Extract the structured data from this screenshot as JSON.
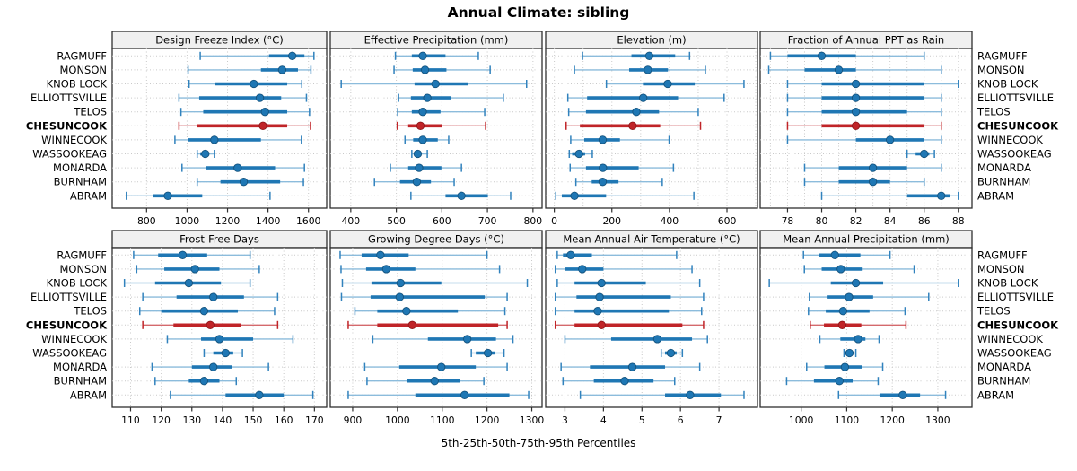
{
  "title": "Annual Climate: sibling",
  "caption": "5th-25th-50th-75th-95th Percentiles",
  "sites": [
    "RAGMUFF",
    "MONSON",
    "KNOB LOCK",
    "ELLIOTTSVILLE",
    "TELOS",
    "CHESUNCOOK",
    "WINNECOOK",
    "WASSOOKEAG",
    "MONARDA",
    "BURNHAM",
    "ABRAM"
  ],
  "highlight_site": "CHESUNCOOK",
  "colors": {
    "accent_blue": "#1f77b4",
    "blue_light": "#8cbcdc",
    "blue_cap": "#3182bd",
    "blue_dot_edge": "#14537e",
    "accent_red": "#c02428",
    "red_light": "#d4696c",
    "red_dot_edge": "#8f161a",
    "grid": "#c9c9c9",
    "border": "#2f2f2f",
    "header_bg": "#f0f0f0",
    "text": "#000000"
  },
  "chart_data": [
    {
      "type": "percentile-dot-plot",
      "row": 0,
      "col": 0,
      "title": "Design Freeze Index (°C)",
      "percentiles": [
        5,
        25,
        50,
        75,
        95
      ],
      "xmin": 630,
      "xmax": 1690,
      "ticks": [
        800,
        1000,
        1200,
        1400,
        1600
      ],
      "series": {
        "RAGMUFF": [
          1065,
          1405,
          1520,
          1580,
          1627
        ],
        "MONSON": [
          1005,
          1365,
          1470,
          1548,
          1612
        ],
        "KNOB LOCK": [
          1010,
          1140,
          1330,
          1495,
          1567
        ],
        "ELLIOTTSVILLE": [
          960,
          1060,
          1360,
          1465,
          1590
        ],
        "TELOS": [
          970,
          1080,
          1385,
          1495,
          1605
        ],
        "CHESUNCOOK": [
          960,
          1050,
          1375,
          1495,
          1610
        ],
        "WINNECOOK": [
          940,
          1005,
          1135,
          1365,
          1565
        ],
        "WASSOOKEAG": [
          1050,
          1065,
          1090,
          1110,
          1135
        ],
        "MONARDA": [
          975,
          1095,
          1250,
          1435,
          1580
        ],
        "BURNHAM": [
          1050,
          1165,
          1280,
          1460,
          1575
        ],
        "ABRAM": [
          700,
          830,
          905,
          1075,
          1410
        ]
      }
    },
    {
      "type": "percentile-dot-plot",
      "row": 0,
      "col": 1,
      "title": "Effective Precipitation (mm)",
      "percentiles": [
        5,
        25,
        50,
        75,
        95
      ],
      "xmin": 355,
      "xmax": 820,
      "ticks": [
        400,
        500,
        600,
        700,
        800
      ],
      "series": {
        "RAGMUFF": [
          498,
          534,
          558,
          608,
          680
        ],
        "MONSON": [
          495,
          536,
          563,
          610,
          706
        ],
        "KNOB LOCK": [
          379,
          540,
          586,
          658,
          786
        ],
        "ELLIOTTSVILLE": [
          505,
          532,
          568,
          620,
          735
        ],
        "TELOS": [
          503,
          534,
          558,
          597,
          694
        ],
        "CHESUNCOOK": [
          502,
          526,
          553,
          600,
          696
        ],
        "WINNECOOK": [
          519,
          537,
          558,
          591,
          615
        ],
        "WASSOOKEAG": [
          534,
          540,
          547,
          555,
          568
        ],
        "MONARDA": [
          487,
          526,
          550,
          599,
          643
        ],
        "BURNHAM": [
          452,
          508,
          545,
          576,
          627
        ],
        "ABRAM": [
          532,
          608,
          643,
          701,
          751
        ]
      }
    },
    {
      "type": "percentile-dot-plot",
      "row": 0,
      "col": 2,
      "title": "Elevation (m)",
      "percentiles": [
        5,
        25,
        50,
        75,
        95
      ],
      "xmin": -30,
      "xmax": 706,
      "ticks": [
        0,
        200,
        400,
        600
      ],
      "grid": [
        0,
        100,
        200,
        300,
        400,
        500,
        600,
        700
      ],
      "series": {
        "RAGMUFF": [
          98,
          268,
          330,
          420,
          470
        ],
        "MONSON": [
          70,
          260,
          325,
          395,
          525
        ],
        "KNOB LOCK": [
          181,
          308,
          394,
          488,
          659
        ],
        "ELLIOTTSVILLE": [
          47,
          114,
          309,
          430,
          590
        ],
        "TELOS": [
          50,
          110,
          285,
          364,
          500
        ],
        "CHESUNCOOK": [
          41,
          89,
          272,
          368,
          508
        ],
        "WINNECOOK": [
          57,
          104,
          168,
          228,
          399
        ],
        "WASSOOKEAG": [
          52,
          62,
          86,
          107,
          132
        ],
        "MONARDA": [
          55,
          110,
          169,
          293,
          414
        ],
        "BURNHAM": [
          75,
          130,
          168,
          223,
          375
        ],
        "ABRAM": [
          5,
          26,
          70,
          180,
          485
        ]
      }
    },
    {
      "type": "percentile-dot-plot",
      "row": 0,
      "col": 3,
      "title": "Fraction of Annual PPT as Rain",
      "percentiles": [
        5,
        25,
        50,
        75,
        95
      ],
      "xmin": 76.4,
      "xmax": 88.8,
      "ticks": [
        78,
        80,
        82,
        84,
        86,
        88
      ],
      "grid": [
        77,
        78,
        79,
        80,
        81,
        82,
        83,
        84,
        85,
        86,
        87,
        88
      ],
      "series": {
        "RAGMUFF": [
          77,
          78,
          80,
          82,
          86
        ],
        "MONSON": [
          76.9,
          79,
          81,
          82,
          87
        ],
        "KNOB LOCK": [
          78,
          80,
          82,
          86,
          88
        ],
        "ELLIOTTSVILLE": [
          78,
          80,
          82,
          86,
          87
        ],
        "TELOS": [
          78,
          80,
          82,
          85,
          87
        ],
        "CHESUNCOOK": [
          78,
          80,
          82,
          86,
          87
        ],
        "WINNECOOK": [
          78,
          82,
          84,
          86,
          87
        ],
        "WASSOOKEAG": [
          85,
          85.5,
          86,
          86.3,
          86.6
        ],
        "MONARDA": [
          79,
          81,
          83,
          85,
          87
        ],
        "BURNHAM": [
          79,
          81,
          83,
          84,
          86
        ],
        "ABRAM": [
          80,
          85,
          87,
          87.5,
          88
        ]
      }
    },
    {
      "type": "percentile-dot-plot",
      "row": 1,
      "col": 0,
      "title": "Frost-Free Days",
      "percentiles": [
        5,
        25,
        50,
        75,
        95
      ],
      "xmin": 104,
      "xmax": 174,
      "ticks": [
        110,
        120,
        130,
        140,
        150,
        160,
        170
      ],
      "series": {
        "RAGMUFF": [
          111,
          119,
          127,
          135,
          149
        ],
        "MONSON": [
          112,
          121,
          131,
          139,
          152
        ],
        "KNOB LOCK": [
          108,
          118,
          129,
          139.5,
          149
        ],
        "ELLIOTTSVILLE": [
          114,
          125,
          137,
          147,
          158
        ],
        "TELOS": [
          113,
          120,
          134,
          145,
          157
        ],
        "CHESUNCOOK": [
          114,
          124,
          136,
          146,
          158
        ],
        "WINNECOOK": [
          122,
          133,
          139,
          150,
          163
        ],
        "WASSOOKEAG": [
          134,
          137,
          141,
          143.5,
          146.5
        ],
        "MONARDA": [
          117,
          130,
          137,
          143,
          155
        ],
        "BURNHAM": [
          118,
          129,
          134,
          139,
          144.5
        ],
        "ABRAM": [
          123,
          141,
          152,
          160,
          169.5
        ]
      }
    },
    {
      "type": "percentile-dot-plot",
      "row": 1,
      "col": 1,
      "title": "Growing Degree Days (°C)",
      "percentiles": [
        5,
        25,
        50,
        75,
        95
      ],
      "xmin": 850,
      "xmax": 1323,
      "ticks": [
        900,
        1000,
        1100,
        1200,
        1300
      ],
      "series": {
        "RAGMUFF": [
          872,
          920,
          962,
          1025,
          1200
        ],
        "MONSON": [
          874,
          930,
          975,
          1040,
          1228
        ],
        "KNOB LOCK": [
          877,
          942,
          1007,
          1098,
          1290
        ],
        "ELLIOTTSVILLE": [
          875,
          940,
          1005,
          1195,
          1245
        ],
        "TELOS": [
          905,
          955,
          1020,
          1135,
          1240
        ],
        "CHESUNCOOK": [
          890,
          955,
          1033,
          1225,
          1245
        ],
        "WINNECOOK": [
          945,
          1068,
          1156,
          1220,
          1258
        ],
        "WASSOOKEAG": [
          1165,
          1175,
          1202,
          1218,
          1238
        ],
        "MONARDA": [
          927,
          1004,
          1098,
          1175,
          1245
        ],
        "BURNHAM": [
          932,
          1022,
          1083,
          1140,
          1193
        ],
        "ABRAM": [
          890,
          1040,
          1150,
          1250,
          1293
        ]
      }
    },
    {
      "type": "percentile-dot-plot",
      "row": 1,
      "col": 2,
      "title": "Mean Annual Air Temperature (°C)",
      "percentiles": [
        5,
        25,
        50,
        75,
        95
      ],
      "xmin": 2.5,
      "xmax": 8.0,
      "ticks": [
        3,
        4,
        5,
        6,
        7
      ],
      "series": {
        "RAGMUFF": [
          2.8,
          2.95,
          3.15,
          3.7,
          5.9
        ],
        "MONSON": [
          2.75,
          3.0,
          3.45,
          4.0,
          6.3
        ],
        "KNOB LOCK": [
          2.8,
          3.25,
          3.95,
          5.1,
          6.5
        ],
        "ELLIOTTSVILLE": [
          2.75,
          3.3,
          3.9,
          5.75,
          6.6
        ],
        "TELOS": [
          2.75,
          3.25,
          3.85,
          5.7,
          6.55
        ],
        "CHESUNCOOK": [
          2.75,
          3.25,
          3.95,
          6.05,
          6.6
        ],
        "WINNECOOK": [
          3.0,
          4.2,
          5.4,
          6.3,
          6.7
        ],
        "WASSOOKEAG": [
          5.5,
          5.6,
          5.75,
          5.9,
          6.05
        ],
        "MONARDA": [
          2.9,
          3.65,
          4.75,
          5.6,
          6.5
        ],
        "BURNHAM": [
          2.95,
          3.75,
          4.55,
          5.3,
          5.85
        ],
        "ABRAM": [
          3.4,
          5.6,
          6.25,
          7.05,
          7.65
        ]
      }
    },
    {
      "type": "percentile-dot-plot",
      "row": 1,
      "col": 3,
      "title": "Mean Annual Precipitation (mm)",
      "percentiles": [
        5,
        25,
        50,
        75,
        95
      ],
      "xmin": 910,
      "xmax": 1375,
      "ticks": [
        1000,
        1100,
        1200,
        1300
      ],
      "series": {
        "RAGMUFF": [
          1005,
          1040,
          1074,
          1130,
          1195
        ],
        "MONSON": [
          1007,
          1045,
          1087,
          1135,
          1248
        ],
        "KNOB LOCK": [
          930,
          1065,
          1120,
          1180,
          1345
        ],
        "ELLIOTTSVILLE": [
          1018,
          1058,
          1105,
          1158,
          1280
        ],
        "TELOS": [
          1016,
          1054,
          1092,
          1150,
          1228
        ],
        "CHESUNCOOK": [
          1020,
          1050,
          1090,
          1132,
          1230
        ],
        "WINNECOOK": [
          1041,
          1086,
          1125,
          1141,
          1171
        ],
        "WASSOOKEAG": [
          1094,
          1097,
          1106,
          1113,
          1120
        ],
        "MONARDA": [
          1012,
          1051,
          1096,
          1133,
          1179
        ],
        "BURNHAM": [
          968,
          1028,
          1084,
          1113,
          1169
        ],
        "ABRAM": [
          1082,
          1172,
          1223,
          1261,
          1317
        ]
      }
    }
  ]
}
